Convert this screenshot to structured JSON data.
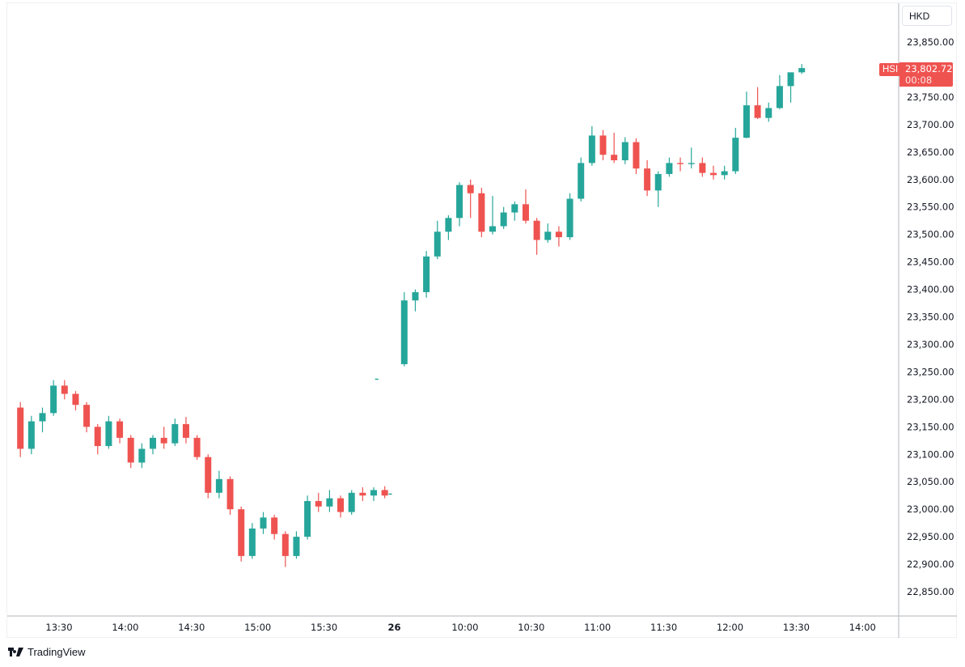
{
  "chart_data": {
    "type": "candlestick",
    "symbol": "HSI",
    "currency": "HKD",
    "last_price": "23,802.72",
    "countdown": "00:08",
    "ylim": [
      22820,
      23900
    ],
    "y_ticks": [
      "23,850.00",
      "23,750.00",
      "23,700.00",
      "23,650.00",
      "23,600.00",
      "23,550.00",
      "23,500.00",
      "23,450.00",
      "23,400.00",
      "23,350.00",
      "23,300.00",
      "23,250.00",
      "23,200.00",
      "23,150.00",
      "23,100.00",
      "23,050.00",
      "23,000.00",
      "22,950.00",
      "22,900.00",
      "22,850.00"
    ],
    "y_tick_values": [
      23850,
      23750,
      23700,
      23650,
      23600,
      23550,
      23500,
      23450,
      23400,
      23350,
      23300,
      23250,
      23200,
      23150,
      23100,
      23050,
      23000,
      22950,
      22900,
      22850
    ],
    "x_ticks": [
      {
        "label": "13:30",
        "day": 1,
        "time": "13:30"
      },
      {
        "label": "14:00",
        "day": 1,
        "time": "14:00"
      },
      {
        "label": "14:30",
        "day": 1,
        "time": "14:30"
      },
      {
        "label": "15:00",
        "day": 1,
        "time": "15:00"
      },
      {
        "label": "15:30",
        "day": 1,
        "time": "15:30"
      },
      {
        "label": "26",
        "day": 2,
        "time": "09:28"
      },
      {
        "label": "10:00",
        "day": 2,
        "time": "10:00"
      },
      {
        "label": "10:30",
        "day": 2,
        "time": "10:30"
      },
      {
        "label": "11:00",
        "day": 2,
        "time": "11:00"
      },
      {
        "label": "11:30",
        "day": 2,
        "time": "11:30"
      },
      {
        "label": "12:00",
        "day": 2,
        "time": "12:00"
      },
      {
        "label": "13:30",
        "day": 2,
        "time": "13:30"
      },
      {
        "label": "14:00",
        "day": 2,
        "time": "14:00"
      }
    ],
    "colors": {
      "up": "#26a69a",
      "down": "#ef5350",
      "last": "#ef5350"
    },
    "bar_interval": "5 min (approx.)",
    "candles": [
      {
        "day": 1,
        "t": "13:10",
        "o": 23185,
        "h": 23195,
        "l": 23095,
        "c": 23110
      },
      {
        "day": 1,
        "t": "13:15",
        "o": 23110,
        "h": 23170,
        "l": 23100,
        "c": 23160
      },
      {
        "day": 1,
        "t": "13:20",
        "o": 23160,
        "h": 23185,
        "l": 23140,
        "c": 23175
      },
      {
        "day": 1,
        "t": "13:25",
        "o": 23175,
        "h": 23235,
        "l": 23170,
        "c": 23225
      },
      {
        "day": 1,
        "t": "13:30",
        "o": 23225,
        "h": 23235,
        "l": 23200,
        "c": 23210
      },
      {
        "day": 1,
        "t": "13:35",
        "o": 23210,
        "h": 23215,
        "l": 23180,
        "c": 23190
      },
      {
        "day": 1,
        "t": "13:40",
        "o": 23190,
        "h": 23195,
        "l": 23140,
        "c": 23150
      },
      {
        "day": 1,
        "t": "13:45",
        "o": 23150,
        "h": 23155,
        "l": 23100,
        "c": 23115
      },
      {
        "day": 1,
        "t": "13:50",
        "o": 23115,
        "h": 23170,
        "l": 23110,
        "c": 23160
      },
      {
        "day": 1,
        "t": "13:55",
        "o": 23160,
        "h": 23165,
        "l": 23120,
        "c": 23130
      },
      {
        "day": 1,
        "t": "14:00",
        "o": 23130,
        "h": 23135,
        "l": 23075,
        "c": 23085
      },
      {
        "day": 1,
        "t": "14:05",
        "o": 23085,
        "h": 23120,
        "l": 23075,
        "c": 23110
      },
      {
        "day": 1,
        "t": "14:10",
        "o": 23110,
        "h": 23135,
        "l": 23100,
        "c": 23130
      },
      {
        "day": 1,
        "t": "14:15",
        "o": 23130,
        "h": 23150,
        "l": 23110,
        "c": 23120
      },
      {
        "day": 1,
        "t": "14:20",
        "o": 23120,
        "h": 23165,
        "l": 23115,
        "c": 23155
      },
      {
        "day": 1,
        "t": "14:25",
        "o": 23155,
        "h": 23168,
        "l": 23120,
        "c": 23130
      },
      {
        "day": 1,
        "t": "14:30",
        "o": 23130,
        "h": 23135,
        "l": 23090,
        "c": 23095
      },
      {
        "day": 1,
        "t": "14:35",
        "o": 23095,
        "h": 23100,
        "l": 23020,
        "c": 23030
      },
      {
        "day": 1,
        "t": "14:40",
        "o": 23030,
        "h": 23070,
        "l": 23020,
        "c": 23055
      },
      {
        "day": 1,
        "t": "14:45",
        "o": 23055,
        "h": 23060,
        "l": 22990,
        "c": 23000
      },
      {
        "day": 1,
        "t": "14:50",
        "o": 23000,
        "h": 23005,
        "l": 22905,
        "c": 22915
      },
      {
        "day": 1,
        "t": "14:55",
        "o": 22915,
        "h": 22975,
        "l": 22910,
        "c": 22965
      },
      {
        "day": 1,
        "t": "15:00",
        "o": 22965,
        "h": 22995,
        "l": 22955,
        "c": 22985
      },
      {
        "day": 1,
        "t": "15:05",
        "o": 22985,
        "h": 22990,
        "l": 22945,
        "c": 22955
      },
      {
        "day": 1,
        "t": "15:10",
        "o": 22955,
        "h": 22960,
        "l": 22895,
        "c": 22915
      },
      {
        "day": 1,
        "t": "15:15",
        "o": 22915,
        "h": 22960,
        "l": 22910,
        "c": 22950
      },
      {
        "day": 1,
        "t": "15:20",
        "o": 22950,
        "h": 23025,
        "l": 22945,
        "c": 23015
      },
      {
        "day": 1,
        "t": "15:25",
        "o": 23015,
        "h": 23030,
        "l": 22995,
        "c": 23005
      },
      {
        "day": 1,
        "t": "15:30",
        "o": 23005,
        "h": 23035,
        "l": 22995,
        "c": 23020
      },
      {
        "day": 1,
        "t": "15:35",
        "o": 23020,
        "h": 23025,
        "l": 22985,
        "c": 22995
      },
      {
        "day": 1,
        "t": "15:40",
        "o": 22995,
        "h": 23035,
        "l": 22990,
        "c": 23030
      },
      {
        "day": 1,
        "t": "15:45",
        "o": 23030,
        "h": 23040,
        "l": 23015,
        "c": 23025
      },
      {
        "day": 1,
        "t": "15:50",
        "o": 23025,
        "h": 23040,
        "l": 23015,
        "c": 23035
      },
      {
        "day": 1,
        "t": "15:55",
        "o": 23035,
        "h": 23042,
        "l": 23020,
        "c": 23025
      },
      {
        "day": 1,
        "t": "16:00",
        "o": 23028,
        "h": 23028,
        "l": 23028,
        "c": 23028
      },
      {
        "day": 2,
        "t": "09:20",
        "o": 23237,
        "h": 23237,
        "l": 23237,
        "c": 23237
      },
      {
        "day": 2,
        "t": "09:30",
        "o": 23264,
        "h": 23395,
        "l": 23260,
        "c": 23380
      },
      {
        "day": 2,
        "t": "09:35",
        "o": 23380,
        "h": 23400,
        "l": 23360,
        "c": 23395
      },
      {
        "day": 2,
        "t": "09:40",
        "o": 23395,
        "h": 23470,
        "l": 23385,
        "c": 23460
      },
      {
        "day": 2,
        "t": "09:45",
        "o": 23460,
        "h": 23525,
        "l": 23455,
        "c": 23505
      },
      {
        "day": 2,
        "t": "09:50",
        "o": 23505,
        "h": 23535,
        "l": 23490,
        "c": 23530
      },
      {
        "day": 2,
        "t": "09:55",
        "o": 23530,
        "h": 23595,
        "l": 23515,
        "c": 23590
      },
      {
        "day": 2,
        "t": "10:00",
        "o": 23590,
        "h": 23600,
        "l": 23530,
        "c": 23575
      },
      {
        "day": 2,
        "t": "10:05",
        "o": 23575,
        "h": 23585,
        "l": 23495,
        "c": 23505
      },
      {
        "day": 2,
        "t": "10:10",
        "o": 23505,
        "h": 23570,
        "l": 23500,
        "c": 23515
      },
      {
        "day": 2,
        "t": "10:15",
        "o": 23515,
        "h": 23550,
        "l": 23510,
        "c": 23540
      },
      {
        "day": 2,
        "t": "10:20",
        "o": 23540,
        "h": 23560,
        "l": 23525,
        "c": 23555
      },
      {
        "day": 2,
        "t": "10:25",
        "o": 23555,
        "h": 23582,
        "l": 23520,
        "c": 23525
      },
      {
        "day": 2,
        "t": "10:30",
        "o": 23525,
        "h": 23530,
        "l": 23463,
        "c": 23490
      },
      {
        "day": 2,
        "t": "10:35",
        "o": 23490,
        "h": 23520,
        "l": 23485,
        "c": 23505
      },
      {
        "day": 2,
        "t": "10:40",
        "o": 23505,
        "h": 23515,
        "l": 23478,
        "c": 23495
      },
      {
        "day": 2,
        "t": "10:45",
        "o": 23495,
        "h": 23575,
        "l": 23490,
        "c": 23565
      },
      {
        "day": 2,
        "t": "10:50",
        "o": 23565,
        "h": 23640,
        "l": 23560,
        "c": 23630
      },
      {
        "day": 2,
        "t": "10:55",
        "o": 23630,
        "h": 23697,
        "l": 23625,
        "c": 23680
      },
      {
        "day": 2,
        "t": "11:00",
        "o": 23680,
        "h": 23690,
        "l": 23635,
        "c": 23645
      },
      {
        "day": 2,
        "t": "11:05",
        "o": 23645,
        "h": 23685,
        "l": 23630,
        "c": 23635
      },
      {
        "day": 2,
        "t": "11:10",
        "o": 23635,
        "h": 23677,
        "l": 23628,
        "c": 23668
      },
      {
        "day": 2,
        "t": "11:15",
        "o": 23668,
        "h": 23675,
        "l": 23610,
        "c": 23620
      },
      {
        "day": 2,
        "t": "11:20",
        "o": 23620,
        "h": 23635,
        "l": 23570,
        "c": 23580
      },
      {
        "day": 2,
        "t": "11:25",
        "o": 23580,
        "h": 23615,
        "l": 23550,
        "c": 23610
      },
      {
        "day": 2,
        "t": "11:30",
        "o": 23610,
        "h": 23640,
        "l": 23605,
        "c": 23630
      },
      {
        "day": 2,
        "t": "11:35",
        "o": 23630,
        "h": 23640,
        "l": 23615,
        "c": 23628
      },
      {
        "day": 2,
        "t": "11:40",
        "o": 23628,
        "h": 23658,
        "l": 23620,
        "c": 23630
      },
      {
        "day": 2,
        "t": "11:45",
        "o": 23630,
        "h": 23640,
        "l": 23605,
        "c": 23612
      },
      {
        "day": 2,
        "t": "11:50",
        "o": 23612,
        "h": 23625,
        "l": 23600,
        "c": 23608
      },
      {
        "day": 2,
        "t": "11:55",
        "o": 23608,
        "h": 23625,
        "l": 23600,
        "c": 23615
      },
      {
        "day": 2,
        "t": "13:00",
        "o": 23615,
        "h": 23694,
        "l": 23610,
        "c": 23676
      },
      {
        "day": 2,
        "t": "13:05",
        "o": 23676,
        "h": 23760,
        "l": 23675,
        "c": 23735
      },
      {
        "day": 2,
        "t": "13:10",
        "o": 23735,
        "h": 23768,
        "l": 23710,
        "c": 23712
      },
      {
        "day": 2,
        "t": "13:15",
        "o": 23712,
        "h": 23740,
        "l": 23705,
        "c": 23730
      },
      {
        "day": 2,
        "t": "13:20",
        "o": 23730,
        "h": 23790,
        "l": 23728,
        "c": 23770
      },
      {
        "day": 2,
        "t": "13:25",
        "o": 23770,
        "h": 23792,
        "l": 23740,
        "c": 23795
      },
      {
        "day": 2,
        "t": "13:30",
        "o": 23795,
        "h": 23810,
        "l": 23792,
        "c": 23802.72
      }
    ]
  },
  "branding": {
    "logo_text": "TradingView"
  }
}
